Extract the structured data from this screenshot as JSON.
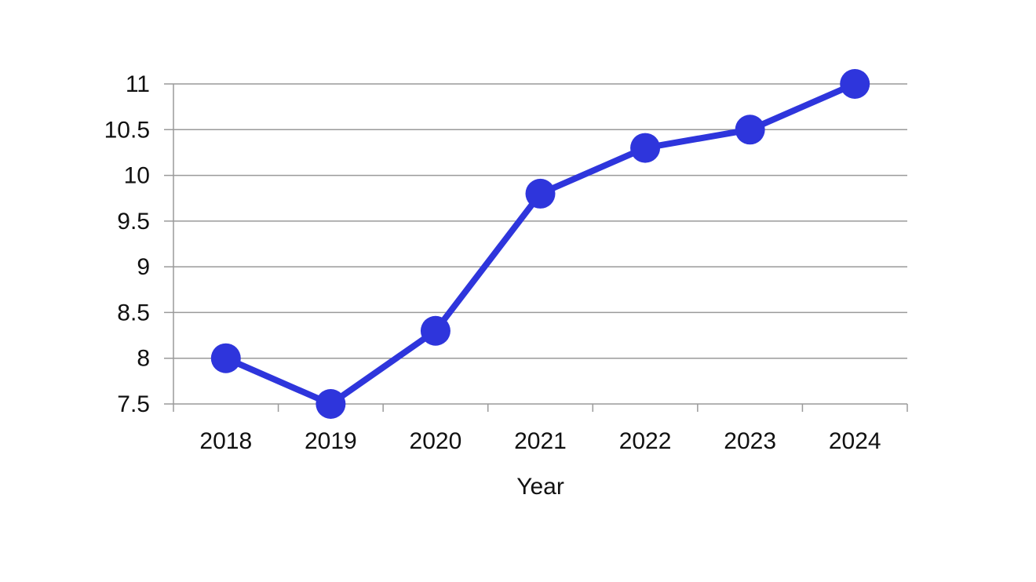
{
  "chart_data": {
    "type": "line",
    "title": "",
    "xlabel": "Year",
    "ylabel": "",
    "categories": [
      "2018",
      "2019",
      "2020",
      "2021",
      "2022",
      "2023",
      "2024"
    ],
    "series": [
      {
        "values": [
          8.0,
          7.5,
          8.3,
          9.8,
          10.3,
          10.5,
          11.0
        ],
        "color": "#2e35dc"
      }
    ],
    "ylim": [
      7.5,
      11
    ],
    "yticks": [
      7.5,
      8,
      8.5,
      9,
      9.5,
      10,
      10.5,
      11
    ],
    "ytick_labels": [
      "7.5",
      "8",
      "8.5",
      "9",
      "9.5",
      "10",
      "10.5",
      "11"
    ],
    "grid": true,
    "gridline_color": "#9a9a9a",
    "axis_color": "#9a9a9a",
    "legend": "none"
  }
}
